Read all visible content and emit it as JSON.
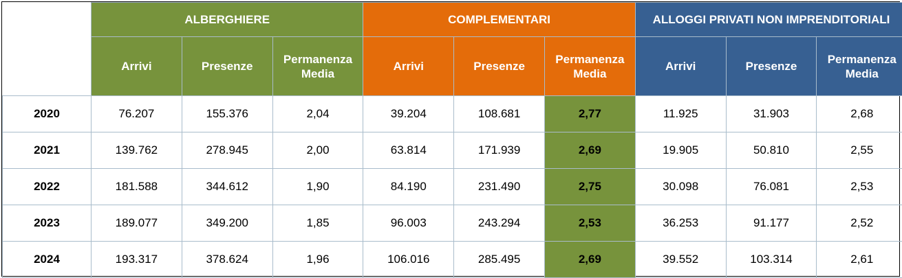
{
  "colors": {
    "alberghiere": "#77933c",
    "complementari": "#e46c0a",
    "alloggi": "#376092",
    "highlight": "#77933c"
  },
  "groups": [
    {
      "label": "ALBERGHIERE"
    },
    {
      "label": "COMPLEMENTARI"
    },
    {
      "label": "ALLOGGI PRIVATI NON IMPRENDITORIALI"
    }
  ],
  "subheaders": {
    "arrivi": "Arrivi",
    "presenze": "Presenze",
    "permanenza_line1": "Permanenza",
    "permanenza_line2": "Media"
  },
  "rows": [
    {
      "year": "2020",
      "alb_arrivi": "76.207",
      "alb_presenze": "155.376",
      "alb_perm": "2,04",
      "com_arrivi": "39.204",
      "com_presenze": "108.681",
      "com_perm": "2,77",
      "all_arrivi": "11.925",
      "all_presenze": "31.903",
      "all_perm": "2,68"
    },
    {
      "year": "2021",
      "alb_arrivi": "139.762",
      "alb_presenze": "278.945",
      "alb_perm": "2,00",
      "com_arrivi": "63.814",
      "com_presenze": "171.939",
      "com_perm": "2,69",
      "all_arrivi": "19.905",
      "all_presenze": "50.810",
      "all_perm": "2,55"
    },
    {
      "year": "2022",
      "alb_arrivi": "181.588",
      "alb_presenze": "344.612",
      "alb_perm": "1,90",
      "com_arrivi": "84.190",
      "com_presenze": "231.490",
      "com_perm": "2,75",
      "all_arrivi": "30.098",
      "all_presenze": "76.081",
      "all_perm": "2,53"
    },
    {
      "year": "2023",
      "alb_arrivi": "189.077",
      "alb_presenze": "349.200",
      "alb_perm": "1,85",
      "com_arrivi": "96.003",
      "com_presenze": "243.294",
      "com_perm": "2,53",
      "all_arrivi": "36.253",
      "all_presenze": "91.177",
      "all_perm": "2,52"
    },
    {
      "year": "2024",
      "alb_arrivi": "193.317",
      "alb_presenze": "378.624",
      "alb_perm": "1,96",
      "com_arrivi": "106.016",
      "com_presenze": "285.495",
      "com_perm": "2,69",
      "all_arrivi": "39.552",
      "all_presenze": "103.314",
      "all_perm": "2,61"
    }
  ]
}
